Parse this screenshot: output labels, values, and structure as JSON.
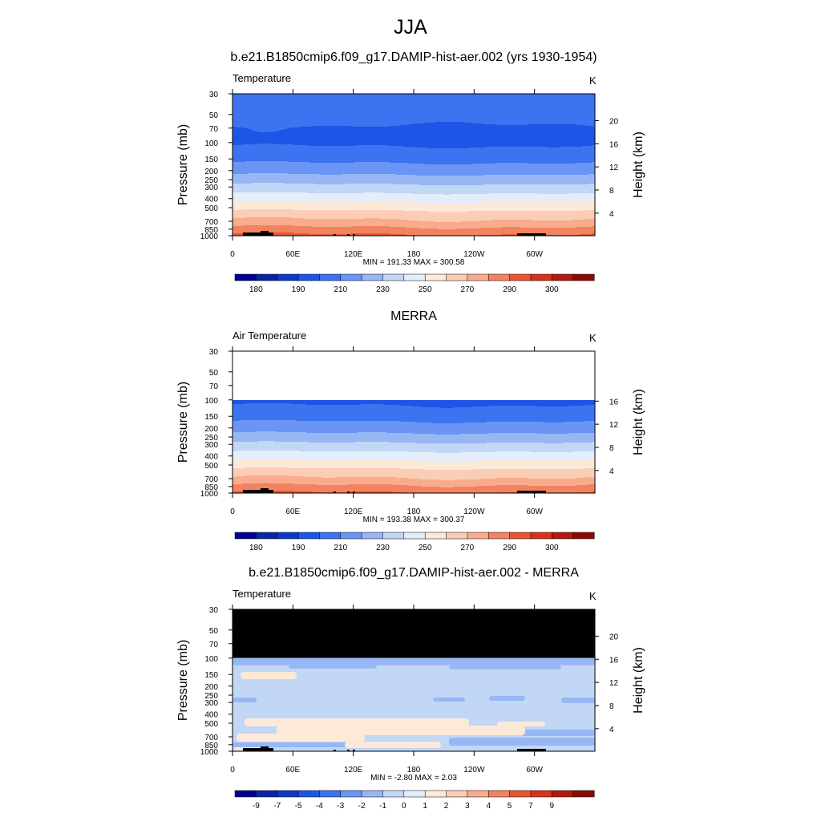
{
  "figure": {
    "title": "JJA"
  },
  "panels": [
    {
      "title": "b.e21.B1850cmip6.f09_g17.DAMIP-hist-aer.002 (yrs 1930-1954)",
      "left_label": "Temperature",
      "units": "K",
      "ylabel_left": "Pressure (mb)",
      "ylabel_right": "Height (km)",
      "stats": "MIN = 191.33  MAX = 300.58",
      "colorbar_labels": [
        "180",
        "190",
        "210",
        "230",
        "250",
        "270",
        "290",
        "300"
      ]
    },
    {
      "title": "MERRA",
      "left_label": "Air Temperature",
      "units": "K",
      "ylabel_left": "Pressure (mb)",
      "ylabel_right": "Height (km)",
      "stats": "MIN = 193.38  MAX = 300.37",
      "colorbar_labels": [
        "180",
        "190",
        "210",
        "230",
        "250",
        "270",
        "290",
        "300"
      ]
    },
    {
      "title": "b.e21.B1850cmip6.f09_g17.DAMIP-hist-aer.002 - MERRA",
      "left_label": "Temperature",
      "units": "K",
      "ylabel_left": "Pressure (mb)",
      "ylabel_right": "Height (km)",
      "stats": "MIN =  -2.80  MAX =   2.03",
      "colorbar_labels": [
        "-9",
        "-7",
        "-5",
        "-4",
        "-3",
        "-2",
        "-1",
        "0",
        "1",
        "2",
        "3",
        "4",
        "5",
        "7",
        "9"
      ]
    }
  ],
  "chart_data": [
    {
      "type": "heatmap",
      "title": "b.e21.B1850cmip6.f09_g17.DAMIP-hist-aer.002 (yrs 1930-1954)",
      "variable": "Temperature",
      "units": "K",
      "xlabel": "",
      "ylabel": "Pressure (mb)",
      "ylabel_right": "Height (km)",
      "x_ticks": [
        "0",
        "60E",
        "120E",
        "180",
        "120W",
        "60W"
      ],
      "y_ticks_pressure": [
        30,
        50,
        70,
        100,
        150,
        200,
        250,
        300,
        400,
        500,
        700,
        850,
        1000
      ],
      "y_ticks_height": [
        20,
        16,
        12,
        8,
        4
      ],
      "y_scale": "log",
      "ylim": [
        1000,
        30
      ],
      "contour_levels": [
        180,
        185,
        190,
        200,
        210,
        220,
        230,
        240,
        250,
        260,
        270,
        280,
        290,
        295,
        300
      ],
      "min": 191.33,
      "max": 300.58,
      "profile": [
        [
          30,
          206
        ],
        [
          50,
          204
        ],
        [
          70,
          199
        ],
        [
          100,
          198
        ],
        [
          150,
          207
        ],
        [
          200,
          216
        ],
        [
          250,
          225
        ],
        [
          300,
          233
        ],
        [
          400,
          246
        ],
        [
          500,
          257
        ],
        [
          700,
          272
        ],
        [
          850,
          283
        ],
        [
          1000,
          292
        ]
      ]
    },
    {
      "type": "heatmap",
      "title": "MERRA",
      "variable": "Air Temperature",
      "units": "K",
      "xlabel": "",
      "ylabel": "Pressure (mb)",
      "ylabel_right": "Height (km)",
      "x_ticks": [
        "0",
        "60E",
        "120E",
        "180",
        "120W",
        "60W"
      ],
      "y_ticks_pressure": [
        30,
        50,
        70,
        100,
        150,
        200,
        250,
        300,
        400,
        500,
        700,
        850,
        1000
      ],
      "y_ticks_height": [
        16,
        12,
        8,
        4
      ],
      "y_scale": "log",
      "ylim": [
        1000,
        30
      ],
      "contour_levels": [
        180,
        185,
        190,
        200,
        210,
        220,
        230,
        240,
        250,
        260,
        270,
        280,
        290,
        295,
        300
      ],
      "min": 193.38,
      "max": 300.37,
      "profile": [
        [
          100,
          197
        ],
        [
          150,
          206
        ],
        [
          200,
          215
        ],
        [
          250,
          224
        ],
        [
          300,
          232
        ],
        [
          400,
          245
        ],
        [
          500,
          256
        ],
        [
          700,
          271
        ],
        [
          850,
          282
        ],
        [
          1000,
          291
        ]
      ]
    },
    {
      "type": "heatmap",
      "title": "b.e21.B1850cmip6.f09_g17.DAMIP-hist-aer.002 - MERRA",
      "variable": "Temperature",
      "units": "K",
      "xlabel": "",
      "ylabel": "Pressure (mb)",
      "ylabel_right": "Height (km)",
      "x_ticks": [
        "0",
        "60E",
        "120E",
        "180",
        "120W",
        "60W"
      ],
      "y_ticks_pressure": [
        30,
        50,
        70,
        100,
        150,
        200,
        250,
        300,
        400,
        500,
        700,
        850,
        1000
      ],
      "y_ticks_height": [
        20,
        16,
        12,
        8,
        4
      ],
      "y_scale": "log",
      "ylim": [
        1000,
        30
      ],
      "contour_levels": [
        -9,
        -7,
        -5,
        -4,
        -3,
        -2,
        -1,
        0,
        1,
        2,
        3,
        4,
        5,
        7,
        9
      ],
      "min": -2.8,
      "max": 2.03,
      "missing_above_pressure": 100
    }
  ],
  "colors": {
    "temp_palette": [
      "#00008f",
      "#0a24a5",
      "#1038c8",
      "#1d55e6",
      "#3b73f0",
      "#6a95f5",
      "#97b7f4",
      "#c2d7f6",
      "#e4eefa",
      "#fde9d8",
      "#fbcdb4",
      "#f8ac8d",
      "#f28360",
      "#e85534",
      "#d9321c",
      "#b5180f",
      "#8a0a06"
    ],
    "missing": "#000000"
  }
}
